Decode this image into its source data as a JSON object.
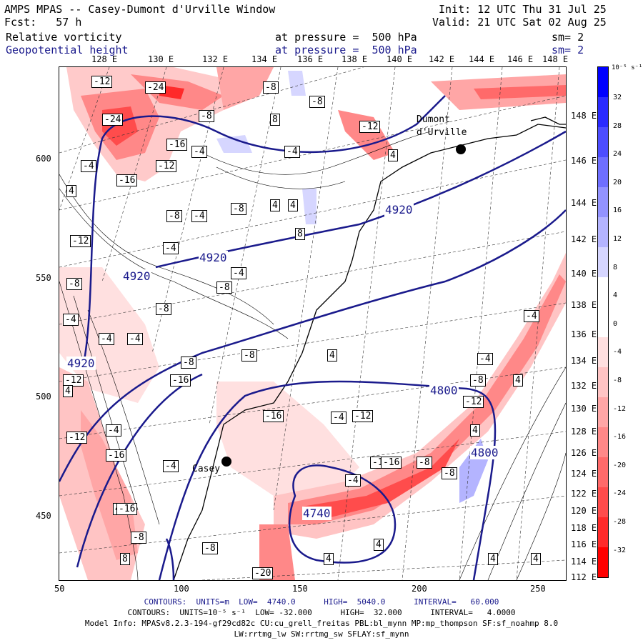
{
  "header": {
    "title": "AMPS MPAS -- Casey-Dumont d'Urville Window",
    "fcst": "Fcst:   57 h",
    "init": "Init: 12 UTC Thu 31 Jul 25",
    "valid": "Valid: 21 UTC Sat 02 Aug 25",
    "field1_name": "Relative vorticity",
    "field1_level": "at pressure =  500 hPa",
    "field1_sm": "sm= 2",
    "field2_name": "Geopotential height",
    "field2_level": "at pressure =  500 hPa",
    "field2_sm": "sm= 2"
  },
  "axes": {
    "top_lon": [
      "128 E",
      "130 E",
      "132 E",
      "134 E",
      "136 E",
      "138 E",
      "140 E",
      "142 E",
      "144 E",
      "146 E",
      "148 E"
    ],
    "right_lon": [
      "148 E",
      "146 E",
      "144 E",
      "142 E",
      "140 E",
      "138 E",
      "136 E",
      "134 E",
      "132 E",
      "130 E",
      "128 E",
      "126 E",
      "124 E",
      "122 E",
      "120 E",
      "118 E",
      "116 E",
      "114 E",
      "112 E"
    ],
    "left_y": [
      "600",
      "550",
      "500",
      "450"
    ],
    "bottom_x": [
      "50",
      "100",
      "150",
      "200",
      "250"
    ]
  },
  "colorbar": {
    "unit": "10⁻⁵ s⁻¹",
    "labels": [
      "32",
      "28",
      "24",
      "20",
      "16",
      "12",
      "8",
      "4",
      "0",
      "-4",
      "-8",
      "-12",
      "-16",
      "-20",
      "-24",
      "-28",
      "-32"
    ],
    "colors": [
      "#0000ff",
      "#2a2aff",
      "#4d4dff",
      "#6f6fff",
      "#9393ff",
      "#b4b4ff",
      "#d6d6ff",
      "#ffffff",
      "#ffffff",
      "#ffe0e0",
      "#ffc4c4",
      "#ffa6a6",
      "#ff8888",
      "#ff6a6a",
      "#ff4c4c",
      "#ff2a2a",
      "#ff0000"
    ]
  },
  "map": {
    "stations": [
      {
        "name": "Casey"
      },
      {
        "name": "Dumont d'Urville"
      }
    ],
    "height_labels": [
      "4920",
      "4920",
      "4920",
      "4920",
      "4800",
      "4800",
      "4740"
    ],
    "vort_labels": [
      "-12",
      "-24",
      "-8",
      "-8",
      "-8",
      "8",
      "-12",
      "-24",
      "-16",
      "-4",
      "-4",
      "-12",
      "-4",
      "-16",
      "4",
      "-8",
      "-4",
      "-8",
      "4",
      "4",
      "4",
      "8",
      "-12",
      "-8",
      "-4",
      "-4",
      "-8",
      "-8",
      "-4",
      "-4",
      "-4",
      "-8",
      "4",
      "-8",
      "-16",
      "-12",
      "-4",
      "-12",
      "-16",
      "-4",
      "-16",
      "-12",
      "-16",
      "-8",
      "-8",
      "-4",
      "-4",
      "-4",
      "-8",
      "-12",
      "-16",
      "-4",
      "4",
      "4",
      "8",
      "4",
      "4",
      "4",
      "4",
      "-20",
      "-8",
      "-8",
      "-16",
      "4",
      "4"
    ]
  },
  "footer": {
    "line1": "CONTOURS:  UNITS=m  LOW=  4740.0      HIGH=  5040.0      INTERVAL=   60.000",
    "line2": "CONTOURS:  UNITS=10⁻⁵ s⁻¹  LOW= -32.000      HIGH=  32.000      INTERVAL=   4.0000",
    "line3": "Model Info: MPASv8.2.3-194-gf29cd82c CU:cu_grell_freitas PBL:bl_mynn MP:mp_thompson SF:sf_noahmp 8.0",
    "line4": "LW:rrtmg_lw SW:rrtmg_sw SFLAY:sf_mynn"
  }
}
